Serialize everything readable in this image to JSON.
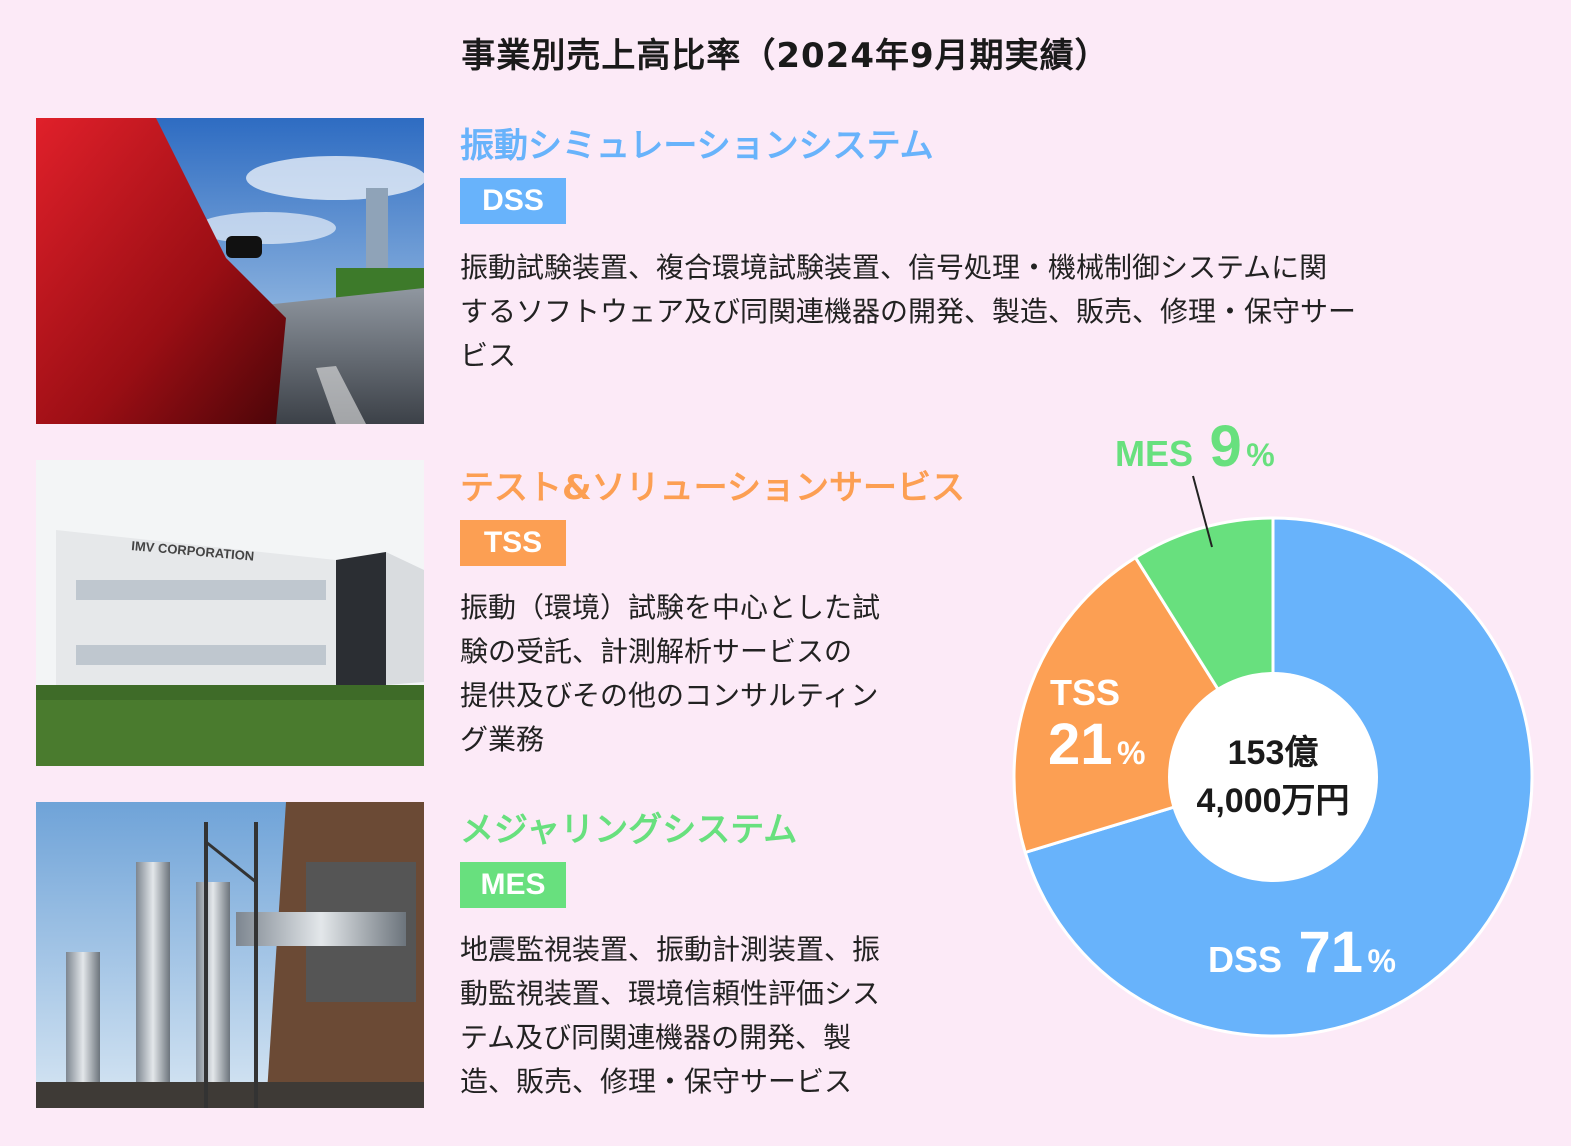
{
  "title": "事業別売上高比率（2024年9月期実績）",
  "colors": {
    "dss": "#68B3FB",
    "tss": "#FC9F53",
    "mes": "#68E07E",
    "background": "#FCEAF7"
  },
  "segments": [
    {
      "name": "振動シミュレーションシステム",
      "badge": "DSS",
      "description": [
        "振動試験装置、複合環境試験装置、信号処理・機械制御システムに関",
        "するソフトウェア及び同関連機器の開発、製造、販売、修理・保守サー",
        "ビス"
      ]
    },
    {
      "name": "テスト&ソリューションサービス",
      "badge": "TSS",
      "description": [
        "振動（環境）試験を中心とした試",
        "験の受託、計測解析サービスの",
        "提供及びその他のコンサルティン",
        "グ業務"
      ],
      "photo_sign": "IMV CORPORATION"
    },
    {
      "name": "メジャリングシステム",
      "badge": "MES",
      "description": [
        "地震監視装置、振動計測装置、振",
        "動監視装置、環境信頼性評価シス",
        "テム及び同関連機器の開発、製",
        "造、販売、修理・保守サービス"
      ]
    }
  ],
  "chart_data": {
    "type": "pie",
    "style": "donut",
    "center_label": [
      "153億",
      "4,000万円"
    ],
    "categories": [
      "DSS",
      "TSS",
      "MES"
    ],
    "values": [
      71,
      21,
      9
    ],
    "unit": "%",
    "colors": [
      "#68B3FB",
      "#FC9F53",
      "#68E07E"
    ]
  }
}
